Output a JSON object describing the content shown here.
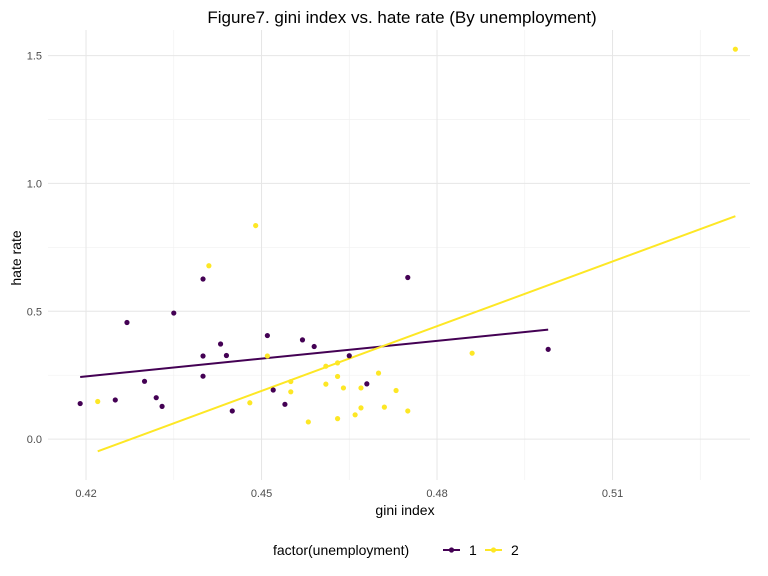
{
  "chart_data": {
    "type": "scatter",
    "title": "Figure7. gini index vs. hate rate (By unemployment)",
    "xlabel": "gini index",
    "ylabel": "hate rate",
    "xlim": [
      0.4135,
      0.5335
    ],
    "ylim": [
      -0.16,
      1.6
    ],
    "x_ticks": [
      {
        "value": 0.42,
        "label": "0.42"
      },
      {
        "value": 0.45,
        "label": "0.45"
      },
      {
        "value": 0.48,
        "label": "0.48"
      },
      {
        "value": 0.51,
        "label": "0.51"
      }
    ],
    "y_ticks": [
      {
        "value": 0.0,
        "label": "0.0"
      },
      {
        "value": 0.5,
        "label": "0.5"
      },
      {
        "value": 1.0,
        "label": "1.0"
      },
      {
        "value": 1.5,
        "label": "1.5"
      }
    ],
    "grid": true,
    "legend": {
      "title": "factor(unemployment)",
      "position": "bottom"
    },
    "series": [
      {
        "name": "1",
        "color": "#440154",
        "points": [
          [
            0.419,
            0.139
          ],
          [
            0.425,
            0.153
          ],
          [
            0.427,
            0.456
          ],
          [
            0.43,
            0.226
          ],
          [
            0.432,
            0.162
          ],
          [
            0.433,
            0.128
          ],
          [
            0.435,
            0.493
          ],
          [
            0.44,
            0.626
          ],
          [
            0.44,
            0.325
          ],
          [
            0.44,
            0.246
          ],
          [
            0.443,
            0.372
          ],
          [
            0.444,
            0.327
          ],
          [
            0.445,
            0.11
          ],
          [
            0.451,
            0.405
          ],
          [
            0.452,
            0.192
          ],
          [
            0.454,
            0.136
          ],
          [
            0.457,
            0.388
          ],
          [
            0.459,
            0.362
          ],
          [
            0.465,
            0.326
          ],
          [
            0.468,
            0.216
          ],
          [
            0.475,
            0.632
          ],
          [
            0.499,
            0.351
          ]
        ],
        "trend": [
          [
            0.419,
            0.243
          ],
          [
            0.499,
            0.428
          ]
        ]
      },
      {
        "name": "2",
        "color": "#FDE725",
        "points": [
          [
            0.422,
            0.147
          ],
          [
            0.441,
            0.678
          ],
          [
            0.448,
            0.142
          ],
          [
            0.449,
            0.835
          ],
          [
            0.451,
            0.325
          ],
          [
            0.455,
            0.225
          ],
          [
            0.455,
            0.185
          ],
          [
            0.458,
            0.067
          ],
          [
            0.461,
            0.285
          ],
          [
            0.461,
            0.215
          ],
          [
            0.463,
            0.245
          ],
          [
            0.463,
            0.298
          ],
          [
            0.463,
            0.08
          ],
          [
            0.464,
            0.2
          ],
          [
            0.466,
            0.095
          ],
          [
            0.467,
            0.2
          ],
          [
            0.467,
            0.122
          ],
          [
            0.47,
            0.258
          ],
          [
            0.471,
            0.125
          ],
          [
            0.473,
            0.19
          ],
          [
            0.475,
            0.11
          ],
          [
            0.486,
            0.336
          ],
          [
            0.531,
            1.525
          ]
        ],
        "trend": [
          [
            0.422,
            -0.048
          ],
          [
            0.531,
            0.872
          ]
        ]
      }
    ]
  }
}
